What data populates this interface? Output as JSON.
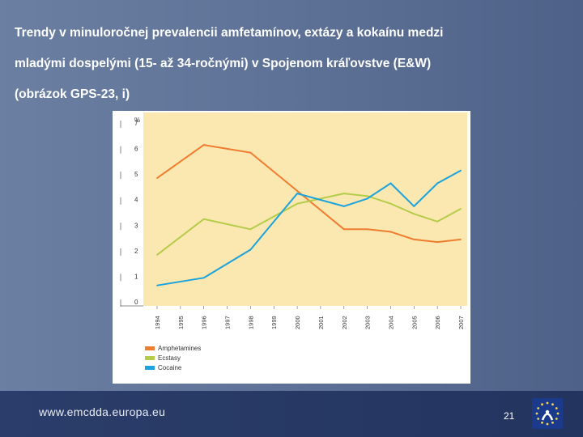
{
  "slide": {
    "title_lines": [
      "Trendy v minuloročnej prevalencii amfetamínov, extázy a kokaínu medzi",
      "mladými dospelými (15- až 34-ročnými) v Spojenom kráľovstve (E&W)",
      "(obrázok GPS-23, i)"
    ],
    "footer_url": "www.emcdda.europa.eu",
    "page_number": "21"
  },
  "colors": {
    "plot_bg": "#fbe7b0",
    "amphetamines": "#ee7d2f",
    "ecstasy": "#b5cc4a",
    "cocaine": "#1aa3dd"
  },
  "chart_data": {
    "type": "line",
    "ylabel": "%",
    "ylim": [
      0,
      7
    ],
    "yticks": [
      "0",
      "1",
      "2",
      "3",
      "4",
      "5",
      "6",
      "7"
    ],
    "categories": [
      "1994",
      "1995",
      "1996",
      "1997",
      "1998",
      "1999",
      "2000",
      "2001",
      "2002",
      "2003",
      "2004",
      "2005",
      "2006",
      "2007"
    ],
    "series": [
      {
        "name": "Amphetamines",
        "values": [
          5.0,
          null,
          6.3,
          null,
          6.0,
          null,
          4.5,
          null,
          3.0,
          3.0,
          2.9,
          2.6,
          2.5,
          2.6
        ]
      },
      {
        "name": "Ecstasy",
        "values": [
          2.0,
          null,
          3.4,
          null,
          3.0,
          null,
          4.0,
          null,
          4.4,
          4.3,
          4.0,
          3.6,
          3.3,
          3.8
        ]
      },
      {
        "name": "Cocaine",
        "values": [
          0.8,
          null,
          1.1,
          null,
          2.2,
          null,
          4.4,
          null,
          3.9,
          4.2,
          4.8,
          3.9,
          4.8,
          5.3
        ]
      }
    ]
  }
}
